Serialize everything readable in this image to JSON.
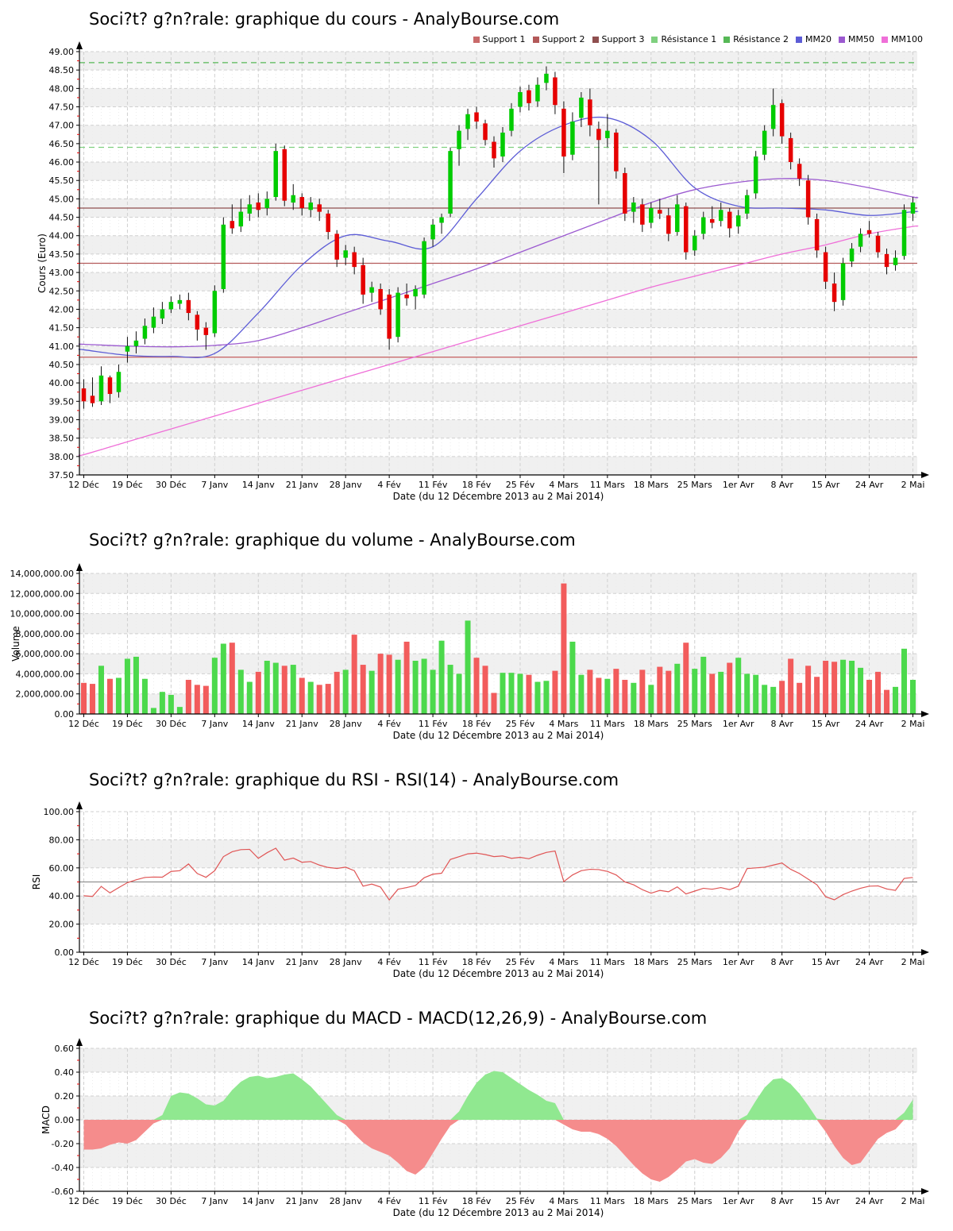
{
  "site": "AnalyBourse.com",
  "x_axis": {
    "title": "Date (du 12 Décembre 2013 au 2 Mai 2014)",
    "n_points": 96,
    "tick_indices": [
      0,
      5,
      10,
      15,
      20,
      25,
      30,
      35,
      40,
      45,
      50,
      55,
      60,
      65,
      70,
      75,
      80,
      85,
      90,
      95
    ],
    "tick_labels": [
      "12 Déc",
      "19 Déc",
      "30 Déc",
      "7 Janv",
      "14 Janv",
      "21 Janv",
      "28 Janv",
      "4 Fév",
      "11 Fév",
      "18 Fév",
      "25 Fév",
      "4 Mars",
      "11 Mars",
      "18 Mars",
      "25 Mars",
      "1er Avr",
      "8 Avr",
      "15 Avr",
      "24 Avr",
      "2 Mai"
    ]
  },
  "colors": {
    "band_gray": "#f0f0f0",
    "grid": "#d0d0d0",
    "minor_grid": "#ececec",
    "axis": "#000000",
    "minor_tick": "#ee0000",
    "candle_up": "#00cc00",
    "candle_down": "#e60000",
    "wick": "#111111",
    "volume_up": "#4cd94c",
    "volume_down": "#f25c5c",
    "rsi_line": "#e05555",
    "rsi_mid": "#808080",
    "macd_pos": "#90e890",
    "macd_neg": "#f58c8c"
  },
  "chart_data": [
    {
      "id": "cours",
      "type": "candlestick",
      "title": "Soci?t? g?n?rale: graphique du cours - AnalyBourse.com",
      "ylabel": "Cours (Euro)",
      "xlabel": "Date (du 12 Décembre 2013 au 2 Mai 2014)",
      "ylim": [
        37.5,
        49.0
      ],
      "ystep": 0.5,
      "yformat": "fix2",
      "legend": [
        {
          "label": "Support 1",
          "color": "#c96a6a"
        },
        {
          "label": "Support 2",
          "color": "#b35959"
        },
        {
          "label": "Support 3",
          "color": "#8f4f4f"
        },
        {
          "label": "Résistance 1",
          "color": "#7fd07f"
        },
        {
          "label": "Résistance 2",
          "color": "#56b856"
        },
        {
          "label": "MM20",
          "color": "#5c5cd6"
        },
        {
          "label": "MM50",
          "color": "#9b59d0"
        },
        {
          "label": "MM100",
          "color": "#ef6fd8"
        }
      ],
      "levels": [
        {
          "name": "Support 1",
          "value": 40.7,
          "color": "#c96a6a",
          "dashed": false
        },
        {
          "name": "Support 2",
          "value": 43.25,
          "color": "#b35959",
          "dashed": false
        },
        {
          "name": "Support 3",
          "value": 44.75,
          "color": "#8f4f4f",
          "dashed": false
        },
        {
          "name": "Résistance 1",
          "value": 46.4,
          "color": "#7fd07f",
          "dashed": true
        },
        {
          "name": "Résistance 2",
          "value": 48.7,
          "color": "#56b856",
          "dashed": true
        }
      ],
      "moving_averages": [
        {
          "name": "MM20",
          "color": "#5c5cd6",
          "values_at_ticks": [
            40.9,
            40.75,
            40.72,
            40.8,
            41.9,
            43.2,
            44.0,
            43.85,
            43.7,
            45.0,
            46.3,
            47.0,
            47.2,
            46.6,
            45.3,
            44.8,
            44.75,
            44.7,
            44.55,
            44.65
          ]
        },
        {
          "name": "MM50",
          "color": "#9b59d0",
          "values_at_ticks": [
            41.05,
            41.0,
            40.98,
            41.02,
            41.15,
            41.5,
            41.9,
            42.3,
            42.7,
            43.1,
            43.55,
            44.0,
            44.45,
            44.9,
            45.25,
            45.45,
            45.55,
            45.5,
            45.3,
            45.05
          ]
        },
        {
          "name": "MM100",
          "color": "#ef6fd8",
          "values_at_ticks": [
            38.05,
            38.4,
            38.75,
            39.1,
            39.45,
            39.8,
            40.15,
            40.5,
            40.85,
            41.2,
            41.55,
            41.9,
            42.25,
            42.6,
            42.9,
            43.2,
            43.5,
            43.75,
            44.05,
            44.25
          ]
        }
      ],
      "ohlc": [
        [
          39.85,
          40.1,
          39.3,
          39.5
        ],
        [
          39.65,
          40.15,
          39.35,
          39.45
        ],
        [
          39.5,
          40.45,
          39.4,
          40.2
        ],
        [
          40.15,
          40.2,
          39.45,
          39.7
        ],
        [
          39.75,
          40.5,
          39.6,
          40.3
        ],
        [
          40.85,
          41.25,
          40.55,
          41.0
        ],
        [
          41.0,
          41.4,
          40.8,
          41.15
        ],
        [
          41.2,
          41.75,
          41.05,
          41.55
        ],
        [
          41.5,
          42.05,
          41.35,
          41.8
        ],
        [
          41.75,
          42.2,
          41.6,
          42.0
        ],
        [
          42.0,
          42.35,
          41.9,
          42.2
        ],
        [
          42.15,
          42.4,
          42.0,
          42.25
        ],
        [
          42.25,
          42.45,
          41.7,
          41.9
        ],
        [
          41.85,
          41.95,
          41.15,
          41.45
        ],
        [
          41.5,
          41.65,
          40.9,
          41.3
        ],
        [
          41.35,
          42.65,
          41.25,
          42.5
        ],
        [
          42.55,
          44.5,
          42.45,
          44.3
        ],
        [
          44.4,
          44.85,
          44.05,
          44.2
        ],
        [
          44.25,
          45.0,
          44.1,
          44.65
        ],
        [
          44.6,
          45.1,
          44.4,
          44.85
        ],
        [
          44.9,
          45.15,
          44.5,
          44.7
        ],
        [
          44.75,
          45.2,
          44.55,
          45.0
        ],
        [
          45.05,
          46.5,
          44.95,
          46.3
        ],
        [
          46.35,
          46.45,
          44.8,
          44.95
        ],
        [
          44.9,
          45.4,
          44.7,
          45.1
        ],
        [
          45.05,
          45.15,
          44.55,
          44.75
        ],
        [
          44.7,
          45.05,
          44.5,
          44.9
        ],
        [
          44.85,
          45.0,
          44.4,
          44.65
        ],
        [
          44.6,
          44.7,
          43.9,
          44.1
        ],
        [
          44.05,
          44.15,
          43.15,
          43.35
        ],
        [
          43.4,
          43.75,
          43.2,
          43.6
        ],
        [
          43.55,
          43.7,
          42.95,
          43.15
        ],
        [
          43.2,
          43.4,
          42.15,
          42.4
        ],
        [
          42.45,
          42.75,
          42.2,
          42.6
        ],
        [
          42.55,
          42.7,
          41.85,
          42.0
        ],
        [
          42.4,
          42.55,
          40.9,
          41.2
        ],
        [
          41.25,
          42.6,
          41.1,
          42.45
        ],
        [
          42.4,
          42.7,
          42.1,
          42.3
        ],
        [
          42.35,
          42.65,
          42.0,
          42.55
        ],
        [
          42.4,
          43.95,
          42.3,
          43.85
        ],
        [
          43.9,
          44.45,
          43.7,
          44.3
        ],
        [
          44.35,
          44.6,
          44.05,
          44.5
        ],
        [
          44.6,
          46.4,
          44.5,
          46.3
        ],
        [
          46.35,
          47.0,
          45.9,
          46.85
        ],
        [
          46.9,
          47.45,
          46.6,
          47.3
        ],
        [
          47.35,
          47.5,
          46.9,
          47.1
        ],
        [
          47.05,
          47.15,
          46.45,
          46.6
        ],
        [
          46.55,
          46.7,
          45.85,
          46.1
        ],
        [
          46.15,
          46.95,
          46.0,
          46.8
        ],
        [
          46.85,
          47.6,
          46.7,
          47.45
        ],
        [
          47.5,
          48.05,
          47.35,
          47.9
        ],
        [
          47.95,
          48.1,
          47.4,
          47.6
        ],
        [
          47.65,
          48.3,
          47.5,
          48.1
        ],
        [
          48.15,
          48.6,
          47.95,
          48.4
        ],
        [
          48.3,
          48.45,
          47.3,
          47.55
        ],
        [
          47.45,
          47.65,
          45.7,
          46.15
        ],
        [
          46.2,
          47.35,
          46.05,
          47.1
        ],
        [
          47.2,
          47.9,
          46.95,
          47.75
        ],
        [
          47.7,
          48.0,
          46.7,
          47.0
        ],
        [
          46.9,
          47.1,
          44.85,
          46.6
        ],
        [
          46.65,
          47.3,
          46.4,
          46.85
        ],
        [
          46.8,
          46.9,
          45.55,
          45.75
        ],
        [
          45.7,
          45.85,
          44.4,
          44.6
        ],
        [
          44.65,
          45.05,
          44.35,
          44.9
        ],
        [
          44.85,
          45.0,
          44.1,
          44.3
        ],
        [
          44.35,
          44.9,
          44.2,
          44.75
        ],
        [
          44.7,
          45.0,
          44.45,
          44.6
        ],
        [
          44.55,
          44.75,
          43.85,
          44.05
        ],
        [
          44.1,
          45.1,
          44.0,
          44.85
        ],
        [
          44.8,
          44.9,
          43.35,
          43.55
        ],
        [
          43.6,
          44.15,
          43.45,
          44.0
        ],
        [
          44.05,
          44.65,
          43.9,
          44.5
        ],
        [
          44.45,
          44.8,
          44.2,
          44.35
        ],
        [
          44.4,
          44.9,
          44.25,
          44.7
        ],
        [
          44.65,
          44.75,
          43.95,
          44.2
        ],
        [
          44.25,
          44.7,
          44.05,
          44.55
        ],
        [
          44.6,
          45.25,
          44.45,
          45.1
        ],
        [
          45.15,
          46.3,
          45.0,
          46.15
        ],
        [
          46.2,
          47.0,
          46.05,
          46.85
        ],
        [
          46.9,
          48.0,
          46.7,
          47.55
        ],
        [
          47.6,
          47.7,
          46.5,
          46.7
        ],
        [
          46.65,
          46.8,
          45.8,
          46.0
        ],
        [
          45.95,
          46.1,
          45.35,
          45.55
        ],
        [
          45.5,
          45.65,
          44.3,
          44.5
        ],
        [
          44.45,
          44.6,
          43.4,
          43.6
        ],
        [
          43.55,
          43.7,
          42.55,
          42.75
        ],
        [
          42.7,
          43.0,
          41.95,
          42.2
        ],
        [
          42.25,
          43.4,
          42.1,
          43.25
        ],
        [
          43.3,
          43.8,
          43.15,
          43.65
        ],
        [
          43.7,
          44.2,
          43.55,
          44.05
        ],
        [
          44.15,
          44.4,
          43.95,
          44.05
        ],
        [
          44.0,
          44.1,
          43.4,
          43.55
        ],
        [
          43.5,
          43.65,
          42.95,
          43.15
        ],
        [
          43.2,
          43.6,
          43.05,
          43.4
        ],
        [
          43.45,
          44.85,
          43.35,
          44.7
        ],
        [
          44.6,
          45.05,
          44.4,
          44.9
        ]
      ]
    },
    {
      "id": "volume",
      "type": "bar",
      "title": "Soci?t? g?n?rale: graphique du volume - AnalyBourse.com",
      "ylabel": "Volume",
      "xlabel": "Date (du 12 Décembre 2013 au 2 Mai 2014)",
      "ylim": [
        0,
        14000000
      ],
      "ystep": 2000000,
      "yformat": "loc2",
      "values": [
        3100000,
        3000000,
        4800000,
        3500000,
        3600000,
        5500000,
        5700000,
        3500000,
        600000,
        2200000,
        1900000,
        700000,
        3400000,
        2900000,
        2800000,
        5600000,
        7000000,
        7100000,
        4400000,
        3200000,
        4200000,
        5300000,
        5100000,
        4800000,
        4900000,
        3600000,
        3200000,
        2900000,
        3000000,
        4200000,
        4400000,
        7900000,
        4900000,
        4300000,
        6000000,
        5900000,
        5400000,
        7200000,
        5300000,
        5500000,
        4400000,
        7300000,
        4900000,
        4000000,
        9300000,
        5600000,
        4800000,
        2100000,
        4100000,
        4100000,
        4000000,
        3900000,
        3200000,
        3300000,
        4300000,
        13000000,
        7200000,
        3900000,
        4400000,
        3600000,
        3500000,
        4500000,
        3400000,
        3100000,
        4400000,
        2900000,
        4700000,
        4300000,
        5000000,
        7100000,
        4500000,
        5700000,
        4000000,
        4200000,
        5100000,
        5600000,
        4000000,
        3900000,
        2900000,
        2700000,
        3300000,
        5500000,
        3100000,
        4800000,
        3700000,
        5300000,
        5200000,
        5400000,
        5300000,
        4600000,
        3400000,
        4200000,
        2400000,
        2700000,
        6500000,
        3400000
      ]
    },
    {
      "id": "rsi",
      "type": "line",
      "title": "Soci?t? g?n?rale: graphique du RSI - RSI(14) - AnalyBourse.com",
      "ylabel": "RSI",
      "xlabel": "Date (du 12 Décembre 2013 au 2 Mai 2014)",
      "ylim": [
        0,
        100
      ],
      "ystep": 20,
      "yformat": "fix2",
      "midline": 50,
      "values": [
        40.2,
        39.7,
        46.8,
        42.2,
        46.0,
        49.5,
        51.5,
        53.2,
        53.5,
        53.4,
        57.5,
        58.0,
        62.8,
        56.0,
        53.3,
        58.0,
        68.0,
        71.5,
        73.0,
        73.2,
        66.8,
        70.8,
        74.0,
        65.5,
        67.0,
        64.0,
        64.5,
        62.0,
        60.3,
        59.6,
        60.5,
        58.0,
        47.0,
        48.5,
        46.4,
        37.2,
        44.8,
        46.0,
        47.5,
        53.0,
        55.5,
        56.2,
        66.0,
        68.0,
        70.0,
        70.5,
        69.5,
        68.0,
        68.5,
        66.8,
        67.5,
        66.5,
        69.0,
        71.0,
        72.0,
        50.2,
        55.0,
        58.0,
        59.0,
        58.8,
        57.5,
        55.0,
        50.0,
        48.0,
        44.5,
        42.0,
        44.0,
        43.0,
        46.5,
        41.5,
        43.5,
        45.5,
        44.8,
        46.0,
        44.5,
        47.0,
        59.5,
        60.0,
        60.5,
        62.0,
        63.5,
        59.0,
        56.0,
        52.0,
        48.0,
        39.5,
        37.3,
        41.0,
        43.5,
        45.5,
        47.0,
        47.2,
        45.0,
        44.0,
        52.5,
        53.2
      ]
    },
    {
      "id": "macd",
      "type": "area",
      "title": "Soci?t? g?n?rale: graphique du MACD - MACD(12,26,9) - AnalyBourse.com",
      "ylabel": "MACD",
      "xlabel": "Date (du 12 Décembre 2013 au 2 Mai 2014)",
      "ylim": [
        -0.6,
        0.6
      ],
      "ystep": 0.2,
      "yformat": "fix2",
      "values": [
        -0.25,
        -0.25,
        -0.24,
        -0.21,
        -0.19,
        -0.2,
        -0.17,
        -0.1,
        -0.03,
        0.04,
        0.2,
        0.23,
        0.22,
        0.18,
        0.13,
        0.12,
        0.16,
        0.25,
        0.32,
        0.36,
        0.37,
        0.35,
        0.36,
        0.38,
        0.39,
        0.34,
        0.28,
        0.2,
        0.12,
        0.04,
        -0.04,
        -0.12,
        -0.19,
        -0.24,
        -0.27,
        -0.3,
        -0.36,
        -0.43,
        -0.46,
        -0.4,
        -0.28,
        -0.16,
        -0.05,
        0.07,
        0.2,
        0.31,
        0.38,
        0.41,
        0.4,
        0.35,
        0.3,
        0.25,
        0.21,
        0.16,
        0.14,
        -0.04,
        -0.08,
        -0.1,
        -0.1,
        -0.12,
        -0.16,
        -0.22,
        -0.3,
        -0.38,
        -0.45,
        -0.5,
        -0.52,
        -0.48,
        -0.42,
        -0.35,
        -0.33,
        -0.36,
        -0.37,
        -0.32,
        -0.24,
        -0.1,
        0.04,
        0.16,
        0.27,
        0.34,
        0.35,
        0.3,
        0.22,
        0.12,
        0.01,
        -0.1,
        -0.22,
        -0.32,
        -0.38,
        -0.36,
        -0.26,
        -0.16,
        -0.11,
        -0.08,
        0.06,
        0.17
      ]
    }
  ]
}
